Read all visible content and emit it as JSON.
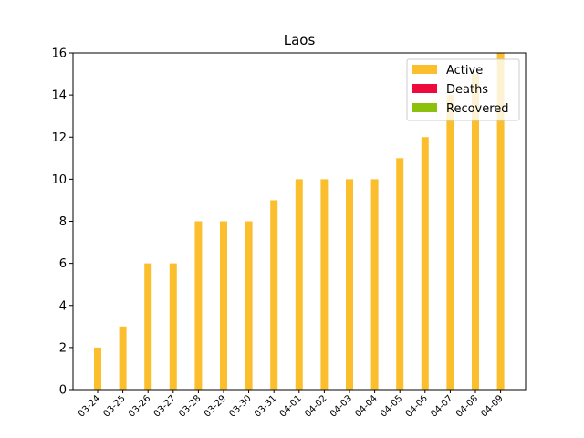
{
  "chart_data": {
    "type": "bar",
    "title": "Laos",
    "xlabel": "",
    "ylabel": "",
    "ylim": [
      0,
      16
    ],
    "yticks": [
      0,
      2,
      4,
      6,
      8,
      10,
      12,
      14,
      16
    ],
    "stacked": true,
    "grid": false,
    "legend_position": "top-right",
    "categories": [
      "03-24",
      "03-25",
      "03-26",
      "03-27",
      "03-28",
      "03-29",
      "03-30",
      "03-31",
      "04-01",
      "04-02",
      "04-03",
      "04-04",
      "04-05",
      "04-06",
      "04-07",
      "04-08",
      "04-09"
    ],
    "series": [
      {
        "name": "Active",
        "color": "#fbbf2e",
        "values": [
          2,
          3,
          6,
          6,
          8,
          8,
          8,
          9,
          10,
          10,
          10,
          10,
          11,
          12,
          14,
          15,
          16
        ]
      },
      {
        "name": "Deaths",
        "color": "#ee0a3d",
        "values": [
          0,
          0,
          0,
          0,
          0,
          0,
          0,
          0,
          0,
          0,
          0,
          0,
          0,
          0,
          0,
          0,
          0
        ]
      },
      {
        "name": "Recovered",
        "color": "#8bc00c",
        "values": [
          0,
          0,
          0,
          0,
          0,
          0,
          0,
          0,
          0,
          0,
          0,
          0,
          0,
          0,
          0,
          0,
          0
        ]
      }
    ]
  }
}
